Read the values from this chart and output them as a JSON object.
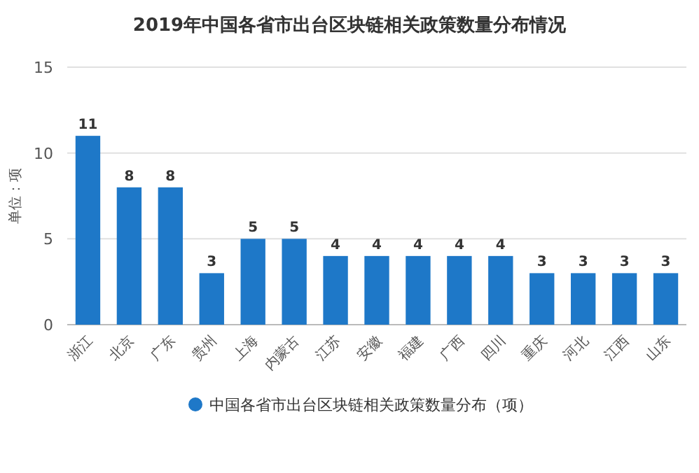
{
  "chart_data": {
    "type": "bar",
    "title": "2019年中国各省市出台区块链相关政策数量分布情况",
    "ylabel": "单位：项",
    "categories": [
      "浙江",
      "北京",
      "广东",
      "贵州",
      "上海",
      "内蒙古",
      "江苏",
      "安徽",
      "福建",
      "广西",
      "四川",
      "重庆",
      "河北",
      "江西",
      "山东"
    ],
    "series": [
      {
        "name": "中国各省市出台区块链相关政策数量分布（项）",
        "color": "#1e78c8",
        "values": [
          11,
          8,
          8,
          3,
          5,
          5,
          4,
          4,
          4,
          4,
          4,
          3,
          3,
          3,
          3
        ]
      }
    ],
    "ylim": [
      0,
      15
    ],
    "yticks": [
      0,
      5,
      10,
      15
    ],
    "grid": "y",
    "legend": "bottom",
    "data_labels": true
  }
}
